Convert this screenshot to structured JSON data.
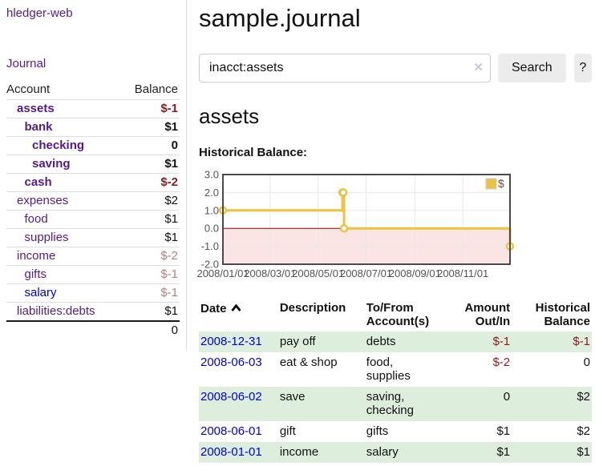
{
  "sidebar": {
    "app_title": "hledger-web",
    "journal_link": "Journal",
    "accounts": {
      "header": {
        "account": "Account",
        "balance": "Balance"
      },
      "rows": [
        {
          "account": "assets",
          "balance": "$-1",
          "depth": 0,
          "bold": true,
          "neg": "strong",
          "link": "visited"
        },
        {
          "account": "bank",
          "balance": "$1",
          "depth": 1,
          "bold": true,
          "neg": "none",
          "link": "visited"
        },
        {
          "account": "checking",
          "balance": "0",
          "depth": 2,
          "bold": true,
          "neg": "none",
          "link": "visited"
        },
        {
          "account": "saving",
          "balance": "$1",
          "depth": 2,
          "bold": true,
          "neg": "none",
          "link": "visited"
        },
        {
          "account": "cash",
          "balance": "$-2",
          "depth": 1,
          "bold": true,
          "neg": "strong",
          "link": "visited"
        },
        {
          "account": "expenses",
          "balance": "$2",
          "depth": 0,
          "bold": false,
          "neg": "none",
          "link": "visited"
        },
        {
          "account": "food",
          "balance": "$1",
          "depth": 1,
          "bold": false,
          "neg": "none",
          "link": "visited"
        },
        {
          "account": "supplies",
          "balance": "$1",
          "depth": 1,
          "bold": false,
          "neg": "none",
          "link": "visited"
        },
        {
          "account": "income",
          "balance": "$-2",
          "depth": 0,
          "bold": false,
          "neg": "soft",
          "link": "visited"
        },
        {
          "account": "gifts",
          "balance": "$-1",
          "depth": 1,
          "bold": false,
          "neg": "soft",
          "link": "visited"
        },
        {
          "account": "salary",
          "balance": "$-1",
          "depth": 1,
          "bold": false,
          "neg": "soft",
          "link": "unvisited"
        },
        {
          "account": "liabilities:debts",
          "balance": "$1",
          "depth": 0,
          "bold": false,
          "neg": "none",
          "link": "visited"
        }
      ],
      "total": "0"
    }
  },
  "main": {
    "title": "sample.journal",
    "search": {
      "query": "inacct:assets",
      "clear_icon": "✕",
      "search_button": "Search",
      "help_button": "?"
    },
    "account_heading": "assets",
    "chart_label": "Historical Balance:"
  },
  "chart_data": {
    "type": "line",
    "step": true,
    "title": "Historical Balance",
    "xlim": [
      "2008-01-01",
      "2008-12-31"
    ],
    "ylim": [
      -2,
      3
    ],
    "grid": true,
    "legend": {
      "label": "$",
      "position": "top-right"
    },
    "series": [
      {
        "name": "$",
        "color": "#edc240",
        "points": [
          {
            "date": "2008-01-01",
            "value": 1
          },
          {
            "date": "2008-06-01",
            "value": 2
          },
          {
            "date": "2008-06-02",
            "value": 2
          },
          {
            "date": "2008-06-03",
            "value": 0
          },
          {
            "date": "2008-12-31",
            "value": -1
          }
        ]
      }
    ],
    "y_ticks": [
      {
        "label": "3.0",
        "value": 3
      },
      {
        "label": "2.0",
        "value": 2
      },
      {
        "label": "1.0",
        "value": 1
      },
      {
        "label": "0.0",
        "value": 0
      },
      {
        "label": "-1.0",
        "value": -1
      },
      {
        "label": "-2.0",
        "value": -2
      }
    ],
    "x_ticks": [
      {
        "label": "2008/01/01",
        "date": "2008-01-01"
      },
      {
        "label": "2008/03/01",
        "date": "2008-03-01"
      },
      {
        "label": "2008/05/01",
        "date": "2008-05-01"
      },
      {
        "label": "2008/07/01",
        "date": "2008-07-01"
      },
      {
        "label": "2008/09/01",
        "date": "2008-09-01"
      },
      {
        "label": "2008/11/01",
        "date": "2008-11-01"
      }
    ],
    "negative_region_color": "#fbe4e4",
    "zero_line_color": "#8b0000",
    "grid_color": "#e8e8e8",
    "border_color": "#4a4a4a",
    "tick_text_color": "#545454"
  },
  "register": {
    "columns": {
      "date": "Date",
      "description": "Description",
      "accounts": "To/From Account(s)",
      "amount": "Amount Out/In",
      "balance": "Historical Balance"
    },
    "sort": {
      "column": "date",
      "direction": "ascending"
    },
    "stripe_color": "#ddeedd",
    "rows": [
      {
        "date": "2008-12-31",
        "description": "pay off",
        "accounts": "debts",
        "amount": "$-1",
        "amount_neg": true,
        "balance": "$-1",
        "balance_neg": true
      },
      {
        "date": "2008-06-03",
        "description": "eat & shop",
        "accounts": "food, supplies",
        "amount": "$-2",
        "amount_neg": true,
        "balance": "0",
        "balance_neg": false
      },
      {
        "date": "2008-06-02",
        "description": "save",
        "accounts": "saving, checking",
        "amount": "0",
        "amount_neg": false,
        "balance": "$2",
        "balance_neg": false
      },
      {
        "date": "2008-06-01",
        "description": "gift",
        "accounts": "gifts",
        "amount": "$1",
        "amount_neg": false,
        "balance": "$2",
        "balance_neg": false
      },
      {
        "date": "2008-01-01",
        "description": "income",
        "accounts": "salary",
        "amount": "$1",
        "amount_neg": false,
        "balance": "$1",
        "balance_neg": false
      }
    ]
  }
}
